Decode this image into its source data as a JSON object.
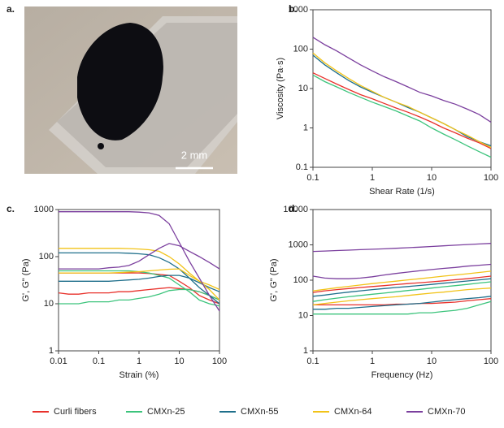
{
  "panel_a": {
    "label": "a.",
    "scale_bar": "2 mm"
  },
  "legend": {
    "location": "bottom"
  },
  "chart_data": [
    {
      "type": "line",
      "label": "b.",
      "xlabel": "Shear Rate (1/s)",
      "ylabel": "Viscosity (Pa·s)",
      "xlog": true,
      "ylog": true,
      "xlim": [
        0.1,
        100
      ],
      "ylim": [
        0.1,
        1000
      ],
      "xticks": [
        0.1,
        1,
        10,
        100
      ],
      "yticks": [
        0.1,
        1,
        10,
        100,
        1000
      ],
      "x": [
        0.1,
        0.158,
        0.251,
        0.398,
        0.631,
        1,
        1.58,
        2.51,
        3.98,
        6.31,
        10,
        15.8,
        25.1,
        39.8,
        63.1,
        100
      ],
      "series": [
        {
          "name": "Curli fibers",
          "color": "#e8312b",
          "values": [
            25,
            18,
            13,
            9.5,
            7,
            5.5,
            4.2,
            3.2,
            2.5,
            1.9,
            1.4,
            1,
            0.75,
            0.55,
            0.42,
            0.3
          ]
        },
        {
          "name": "CMXn-25",
          "color": "#3cc47c",
          "values": [
            22,
            15,
            11,
            8,
            6,
            4.5,
            3.5,
            2.7,
            2,
            1.5,
            1,
            0.7,
            0.5,
            0.35,
            0.25,
            0.18
          ]
        },
        {
          "name": "CMXn-55",
          "color": "#1f6f8b",
          "values": [
            70,
            40,
            25,
            16,
            11,
            8,
            6,
            4.5,
            3.3,
            2.5,
            1.8,
            1.3,
            0.9,
            0.6,
            0.45,
            0.35
          ]
        },
        {
          "name": "CMXn-64",
          "color": "#f2c318",
          "values": [
            80,
            45,
            28,
            18,
            12,
            8.5,
            6,
            4.5,
            3.5,
            2.5,
            1.8,
            1.3,
            0.9,
            0.65,
            0.45,
            0.32
          ]
        },
        {
          "name": "CMXn-70",
          "color": "#7b3f9e",
          "values": [
            200,
            130,
            90,
            60,
            40,
            28,
            20,
            15,
            11,
            8,
            6.5,
            5,
            4,
            3,
            2.2,
            1.4
          ]
        }
      ]
    },
    {
      "type": "line",
      "label": "c.",
      "xlabel": "Strain (%)",
      "ylabel": "G', G\" (Pa)",
      "xlog": true,
      "ylog": true,
      "xlim": [
        0.01,
        100
      ],
      "ylim": [
        1,
        1000
      ],
      "xticks": [
        0.01,
        0.1,
        1,
        10,
        100
      ],
      "yticks": [
        1,
        10,
        100,
        1000
      ],
      "x": [
        0.01,
        0.0178,
        0.0316,
        0.0562,
        0.1,
        0.178,
        0.316,
        0.562,
        1,
        1.78,
        3.16,
        5.62,
        10,
        17.8,
        31.6,
        56.2,
        100
      ],
      "series": [
        {
          "color": "#e8312b",
          "values": [
            45,
            45,
            45,
            45,
            45,
            45,
            45,
            45,
            45,
            44,
            42,
            40,
            30,
            22,
            15,
            12,
            10
          ]
        },
        {
          "color": "#e8312b",
          "values": [
            17,
            16,
            16,
            17,
            17,
            17,
            18,
            18,
            19,
            20,
            21,
            22,
            21,
            20,
            18,
            15,
            12
          ]
        },
        {
          "color": "#3cc47c",
          "values": [
            50,
            50,
            50,
            50,
            50,
            50,
            50,
            50,
            48,
            45,
            40,
            35,
            25,
            18,
            12,
            10,
            9
          ]
        },
        {
          "color": "#3cc47c",
          "values": [
            10,
            10,
            10,
            11,
            11,
            11,
            12,
            12,
            13,
            14,
            16,
            19,
            20,
            20,
            18,
            15,
            12
          ]
        },
        {
          "color": "#1f6f8b",
          "values": [
            120,
            120,
            120,
            120,
            120,
            120,
            120,
            118,
            115,
            110,
            95,
            75,
            55,
            35,
            22,
            15,
            10
          ]
        },
        {
          "color": "#1f6f8b",
          "values": [
            30,
            30,
            30,
            30,
            30,
            30,
            31,
            32,
            33,
            35,
            38,
            40,
            40,
            35,
            28,
            22,
            18
          ]
        },
        {
          "color": "#f2c318",
          "values": [
            150,
            150,
            150,
            150,
            150,
            150,
            150,
            148,
            145,
            140,
            130,
            100,
            70,
            45,
            30,
            20,
            12
          ]
        },
        {
          "color": "#f2c318",
          "values": [
            45,
            45,
            45,
            45,
            45,
            45,
            46,
            47,
            48,
            50,
            52,
            54,
            55,
            40,
            30,
            25,
            20
          ]
        },
        {
          "color": "#7b3f9e",
          "values": [
            900,
            900,
            900,
            900,
            900,
            900,
            900,
            900,
            880,
            850,
            750,
            500,
            200,
            80,
            35,
            15,
            7
          ]
        },
        {
          "color": "#7b3f9e",
          "values": [
            55,
            55,
            55,
            55,
            55,
            58,
            60,
            65,
            80,
            110,
            150,
            190,
            170,
            130,
            100,
            75,
            55
          ]
        }
      ]
    },
    {
      "type": "line",
      "label": "d.",
      "xlabel": "Frequency (Hz)",
      "ylabel": "G', G\" (Pa)",
      "xlog": true,
      "ylog": true,
      "xlim": [
        0.1,
        100
      ],
      "ylim": [
        1,
        10000
      ],
      "xticks": [
        0.1,
        1,
        10,
        100
      ],
      "yticks": [
        1,
        10,
        100,
        1000,
        10000
      ],
      "x": [
        0.1,
        0.158,
        0.251,
        0.398,
        0.631,
        1,
        1.58,
        2.51,
        3.98,
        6.31,
        10,
        15.8,
        25.1,
        39.8,
        63.1,
        100
      ],
      "series": [
        {
          "color": "#e8312b",
          "values": [
            45,
            50,
            54,
            58,
            62,
            66,
            70,
            75,
            80,
            85,
            90,
            96,
            103,
            110,
            120,
            130
          ]
        },
        {
          "color": "#e8312b",
          "values": [
            20,
            20,
            20,
            20,
            20,
            20,
            20,
            21,
            21,
            22,
            22,
            23,
            24,
            26,
            28,
            30
          ]
        },
        {
          "color": "#3cc47c",
          "values": [
            25,
            28,
            31,
            34,
            37,
            40,
            43,
            47,
            51,
            55,
            60,
            65,
            70,
            76,
            83,
            90
          ]
        },
        {
          "color": "#3cc47c",
          "values": [
            11,
            11,
            11,
            11,
            11,
            11,
            11,
            11,
            11,
            12,
            12,
            13,
            14,
            16,
            20,
            25
          ]
        },
        {
          "color": "#1f6f8b",
          "values": [
            35,
            38,
            42,
            46,
            50,
            54,
            58,
            62,
            66,
            71,
            76,
            82,
            88,
            95,
            102,
            110
          ]
        },
        {
          "color": "#1f6f8b",
          "values": [
            15,
            15,
            16,
            16,
            17,
            18,
            19,
            20,
            21,
            22,
            24,
            26,
            28,
            30,
            32,
            35
          ]
        },
        {
          "color": "#f2c318",
          "values": [
            50,
            55,
            61,
            67,
            73,
            80,
            87,
            94,
            102,
            110,
            120,
            130,
            140,
            152,
            165,
            180
          ]
        },
        {
          "color": "#f2c318",
          "values": [
            20,
            22,
            24,
            26,
            28,
            30,
            32,
            34,
            37,
            40,
            43,
            46,
            50,
            54,
            57,
            60
          ]
        },
        {
          "color": "#7b3f9e",
          "values": [
            650,
            670,
            690,
            710,
            730,
            750,
            770,
            800,
            830,
            860,
            900,
            940,
            980,
            1020,
            1060,
            1100
          ]
        },
        {
          "color": "#7b3f9e",
          "values": [
            130,
            115,
            110,
            110,
            115,
            125,
            140,
            155,
            170,
            185,
            200,
            215,
            230,
            250,
            265,
            280
          ]
        }
      ]
    }
  ]
}
